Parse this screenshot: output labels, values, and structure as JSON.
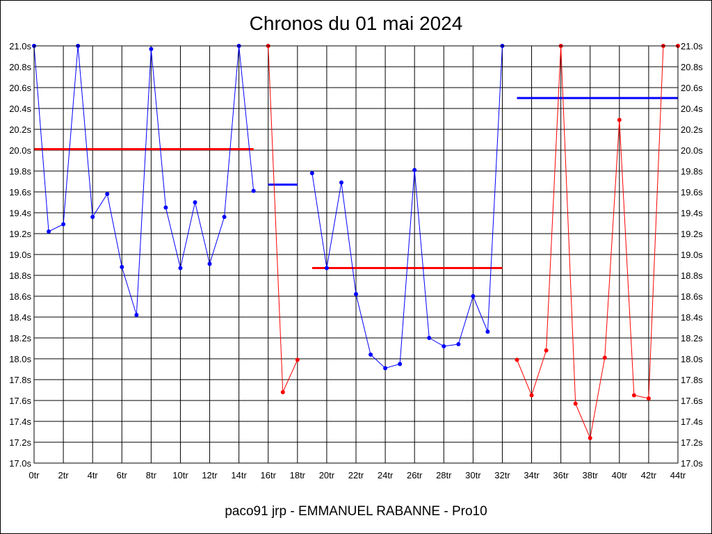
{
  "chart_data": {
    "type": "line",
    "title": "Chronos du 01 mai 2024",
    "footer": "paco91 jrp - EMMANUEL RABANNE - Pro10",
    "xlabel": "",
    "ylabel": "",
    "xlim": [
      0,
      44
    ],
    "ylim": [
      17.0,
      21.0
    ],
    "grid": true,
    "x_ticks": [
      "0tr",
      "2tr",
      "4tr",
      "6tr",
      "8tr",
      "10tr",
      "12tr",
      "14tr",
      "16tr",
      "18tr",
      "20tr",
      "22tr",
      "24tr",
      "26tr",
      "28tr",
      "30tr",
      "32tr",
      "34tr",
      "36tr",
      "38tr",
      "40tr",
      "42tr",
      "44tr"
    ],
    "y_ticks": [
      "17.0s",
      "17.2s",
      "17.4s",
      "17.6s",
      "17.8s",
      "18.0s",
      "18.2s",
      "18.4s",
      "18.6s",
      "18.8s",
      "19.0s",
      "19.2s",
      "19.4s",
      "19.6s",
      "19.8s",
      "20.0s",
      "20.2s",
      "20.4s",
      "20.6s",
      "20.8s",
      "21.0s"
    ],
    "colors": {
      "blue": "#0000ff",
      "red": "#ff0000"
    },
    "series": [
      {
        "color": "#0000ff",
        "x": [
          0,
          1,
          2,
          3,
          4,
          5,
          6,
          7,
          8,
          9,
          10,
          11,
          12,
          13,
          14,
          15
        ],
        "y": [
          21.0,
          19.22,
          19.29,
          21.0,
          19.36,
          19.58,
          18.88,
          18.42,
          20.97,
          19.45,
          18.87,
          19.5,
          18.91,
          19.36,
          21.0,
          19.61
        ]
      },
      {
        "color": "#ff0000",
        "x": [
          16,
          17,
          18
        ],
        "y": [
          21.0,
          17.68,
          17.99
        ]
      },
      {
        "color": "#0000ff",
        "x": [
          19,
          20,
          21,
          22,
          23,
          24,
          25,
          26,
          27,
          28,
          29,
          30,
          31,
          32
        ],
        "y": [
          19.78,
          18.87,
          19.69,
          18.62,
          18.04,
          17.91,
          17.95,
          19.81,
          18.2,
          18.12,
          18.14,
          18.6,
          18.26,
          21.0
        ]
      },
      {
        "color": "#ff0000",
        "x": [
          33,
          34,
          35,
          36,
          37,
          38,
          39,
          40,
          41,
          42,
          43,
          44
        ],
        "y": [
          17.99,
          17.65,
          18.08,
          21.0,
          17.57,
          17.24,
          18.01,
          20.29,
          17.65,
          17.62,
          21.0,
          21.0
        ]
      }
    ],
    "averages": [
      {
        "color": "#ff0000",
        "x": [
          0,
          15
        ],
        "y": 20.01
      },
      {
        "color": "#0000ff",
        "x": [
          16,
          18
        ],
        "y": 19.67
      },
      {
        "color": "#ff0000",
        "x": [
          19,
          32
        ],
        "y": 18.87
      },
      {
        "color": "#0000ff",
        "x": [
          33,
          44
        ],
        "y": 20.5
      }
    ]
  }
}
